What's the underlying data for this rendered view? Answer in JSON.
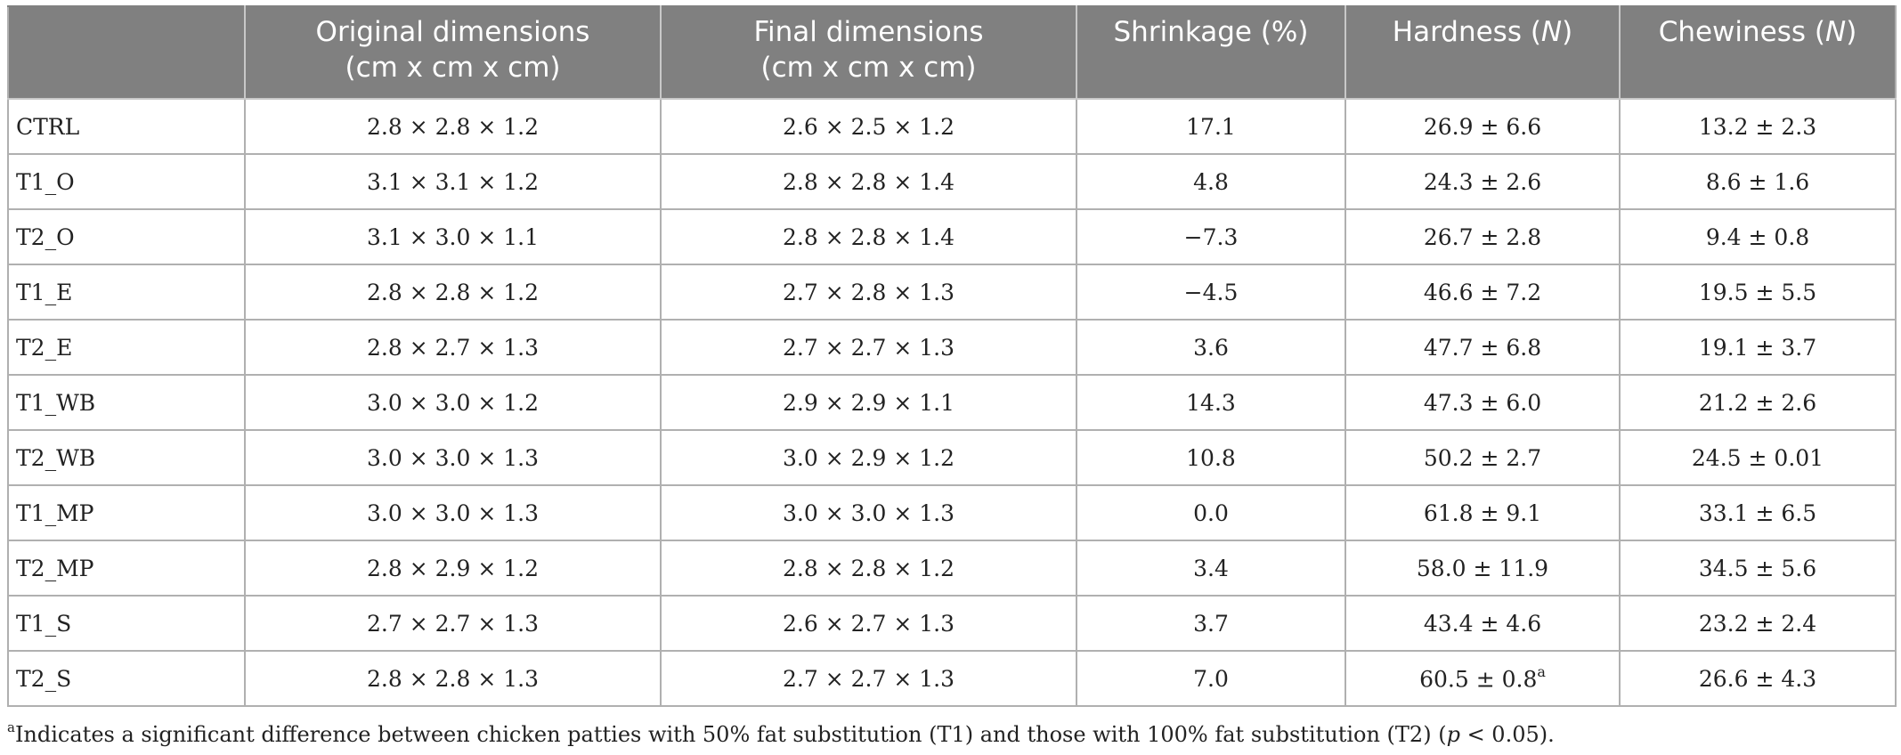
{
  "table": {
    "headers": [
      {
        "line1": "",
        "line2": ""
      },
      {
        "line1": "Original dimensions",
        "line2": "(cm x cm x cm)"
      },
      {
        "line1": "Final dimensions",
        "line2": "(cm x cm x cm)"
      },
      {
        "line1": "Shrinkage (%)",
        "line2": ""
      },
      {
        "line1": "Hardness (N)",
        "line2": ""
      },
      {
        "line1": "Chewiness (N)",
        "line2": ""
      }
    ],
    "rows": [
      {
        "treatment": "CTRL",
        "original": "2.8 × 2.8 × 1.2",
        "final": "2.6 × 2.5 × 1.2",
        "shrinkage": "17.1",
        "hardness": "26.9 ± 6.6",
        "hardness_mark": "",
        "chewiness": "13.2 ± 2.3"
      },
      {
        "treatment": "T1_O",
        "original": "3.1 × 3.1 × 1.2",
        "final": "2.8 × 2.8 × 1.4",
        "shrinkage": "4.8",
        "hardness": "24.3 ± 2.6",
        "hardness_mark": "",
        "chewiness": "8.6 ± 1.6"
      },
      {
        "treatment": "T2_O",
        "original": "3.1 × 3.0 × 1.1",
        "final": "2.8 × 2.8 × 1.4",
        "shrinkage": "−7.3",
        "hardness": "26.7 ± 2.8",
        "hardness_mark": "",
        "chewiness": "9.4 ± 0.8"
      },
      {
        "treatment": "T1_E",
        "original": "2.8 × 2.8 × 1.2",
        "final": "2.7 × 2.8 × 1.3",
        "shrinkage": "−4.5",
        "hardness": "46.6 ± 7.2",
        "hardness_mark": "",
        "chewiness": "19.5 ± 5.5"
      },
      {
        "treatment": "T2_E",
        "original": "2.8 × 2.7 × 1.3",
        "final": "2.7 × 2.7 × 1.3",
        "shrinkage": "3.6",
        "hardness": "47.7 ± 6.8",
        "hardness_mark": "",
        "chewiness": "19.1 ± 3.7"
      },
      {
        "treatment": "T1_WB",
        "original": "3.0 × 3.0 × 1.2",
        "final": "2.9 × 2.9 × 1.1",
        "shrinkage": "14.3",
        "hardness": "47.3 ± 6.0",
        "hardness_mark": "",
        "chewiness": "21.2 ± 2.6"
      },
      {
        "treatment": "T2_WB",
        "original": "3.0 × 3.0 × 1.3",
        "final": "3.0 × 2.9 × 1.2",
        "shrinkage": "10.8",
        "hardness": "50.2 ± 2.7",
        "hardness_mark": "",
        "chewiness": "24.5 ± 0.01"
      },
      {
        "treatment": "T1_MP",
        "original": "3.0 × 3.0 × 1.3",
        "final": "3.0 × 3.0 × 1.3",
        "shrinkage": "0.0",
        "hardness": "61.8 ± 9.1",
        "hardness_mark": "",
        "chewiness": "33.1 ± 6.5"
      },
      {
        "treatment": "T2_MP",
        "original": "2.8 × 2.9 × 1.2",
        "final": "2.8 × 2.8 × 1.2",
        "shrinkage": "3.4",
        "hardness": "58.0 ± 11.9",
        "hardness_mark": "",
        "chewiness": "34.5 ± 5.6"
      },
      {
        "treatment": "T1_S",
        "original": "2.7 × 2.7 × 1.3",
        "final": "2.6 × 2.7 × 1.3",
        "shrinkage": "3.7",
        "hardness": "43.4 ± 4.6",
        "hardness_mark": "",
        "chewiness": "23.2 ± 2.4"
      },
      {
        "treatment": "T2_S",
        "original": "2.8 × 2.8 × 1.3",
        "final": "2.7 × 2.7 × 1.3",
        "shrinkage": "7.0",
        "hardness": "60.5 ± 0.8",
        "hardness_mark": "a",
        "chewiness": "26.6 ± 4.3"
      }
    ]
  },
  "footnote": {
    "mark": "a",
    "text_before": "Indicates a significant difference between chicken patties with 50% fat substitution (T1) and those with 100% fat substitution (T2) (",
    "p": "p",
    "text_after": " < 0.05)."
  }
}
